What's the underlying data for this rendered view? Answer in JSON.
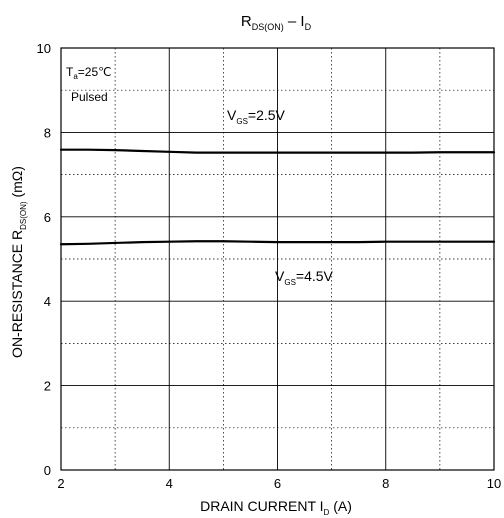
{
  "chart_data": {
    "type": "line",
    "title": {
      "main": "R",
      "main_sub": "DS(ON)",
      "sep": " – ",
      "id": "I",
      "id_sub": "D"
    },
    "xlabel": {
      "main": "DRAIN CURRENT I",
      "sub": "D",
      "unit": " (A)"
    },
    "ylabel": {
      "main": "ON-RESISTANCE R",
      "sub": "DS(ON)",
      "unit": " (mΩ)"
    },
    "xlim": [
      2,
      10
    ],
    "ylim": [
      0,
      10
    ],
    "xticks": [
      2,
      4,
      6,
      8,
      10
    ],
    "yticks": [
      0,
      2,
      4,
      6,
      8,
      10
    ],
    "grid": true,
    "conditions": {
      "ta_main": "T",
      "ta_sub": "a",
      "ta_value": "=25℃",
      "pulsed": "Pulsed"
    },
    "series": [
      {
        "label": {
          "main": "V",
          "sub": "GS",
          "value": "=2.5V"
        },
        "x": [
          2,
          2.5,
          3,
          3.5,
          4,
          4.5,
          5,
          5.5,
          6,
          6.5,
          7,
          7.5,
          8,
          8.5,
          9,
          9.5,
          10
        ],
        "y": [
          7.59,
          7.59,
          7.58,
          7.56,
          7.54,
          7.52,
          7.52,
          7.52,
          7.52,
          7.52,
          7.52,
          7.52,
          7.52,
          7.52,
          7.53,
          7.53,
          7.53
        ]
      },
      {
        "label": {
          "main": "V",
          "sub": "GS",
          "value": "=4.5V"
        },
        "x": [
          2,
          2.5,
          3,
          3.5,
          4,
          4.5,
          5,
          5.5,
          6,
          6.5,
          7,
          7.5,
          8,
          8.5,
          9,
          9.5,
          10
        ],
        "y": [
          5.35,
          5.36,
          5.38,
          5.4,
          5.41,
          5.42,
          5.42,
          5.41,
          5.4,
          5.4,
          5.4,
          5.4,
          5.41,
          5.41,
          5.41,
          5.41,
          5.41
        ]
      }
    ]
  },
  "colors": {
    "line": "#000000",
    "grid": "#000000",
    "background": "#ffffff"
  }
}
